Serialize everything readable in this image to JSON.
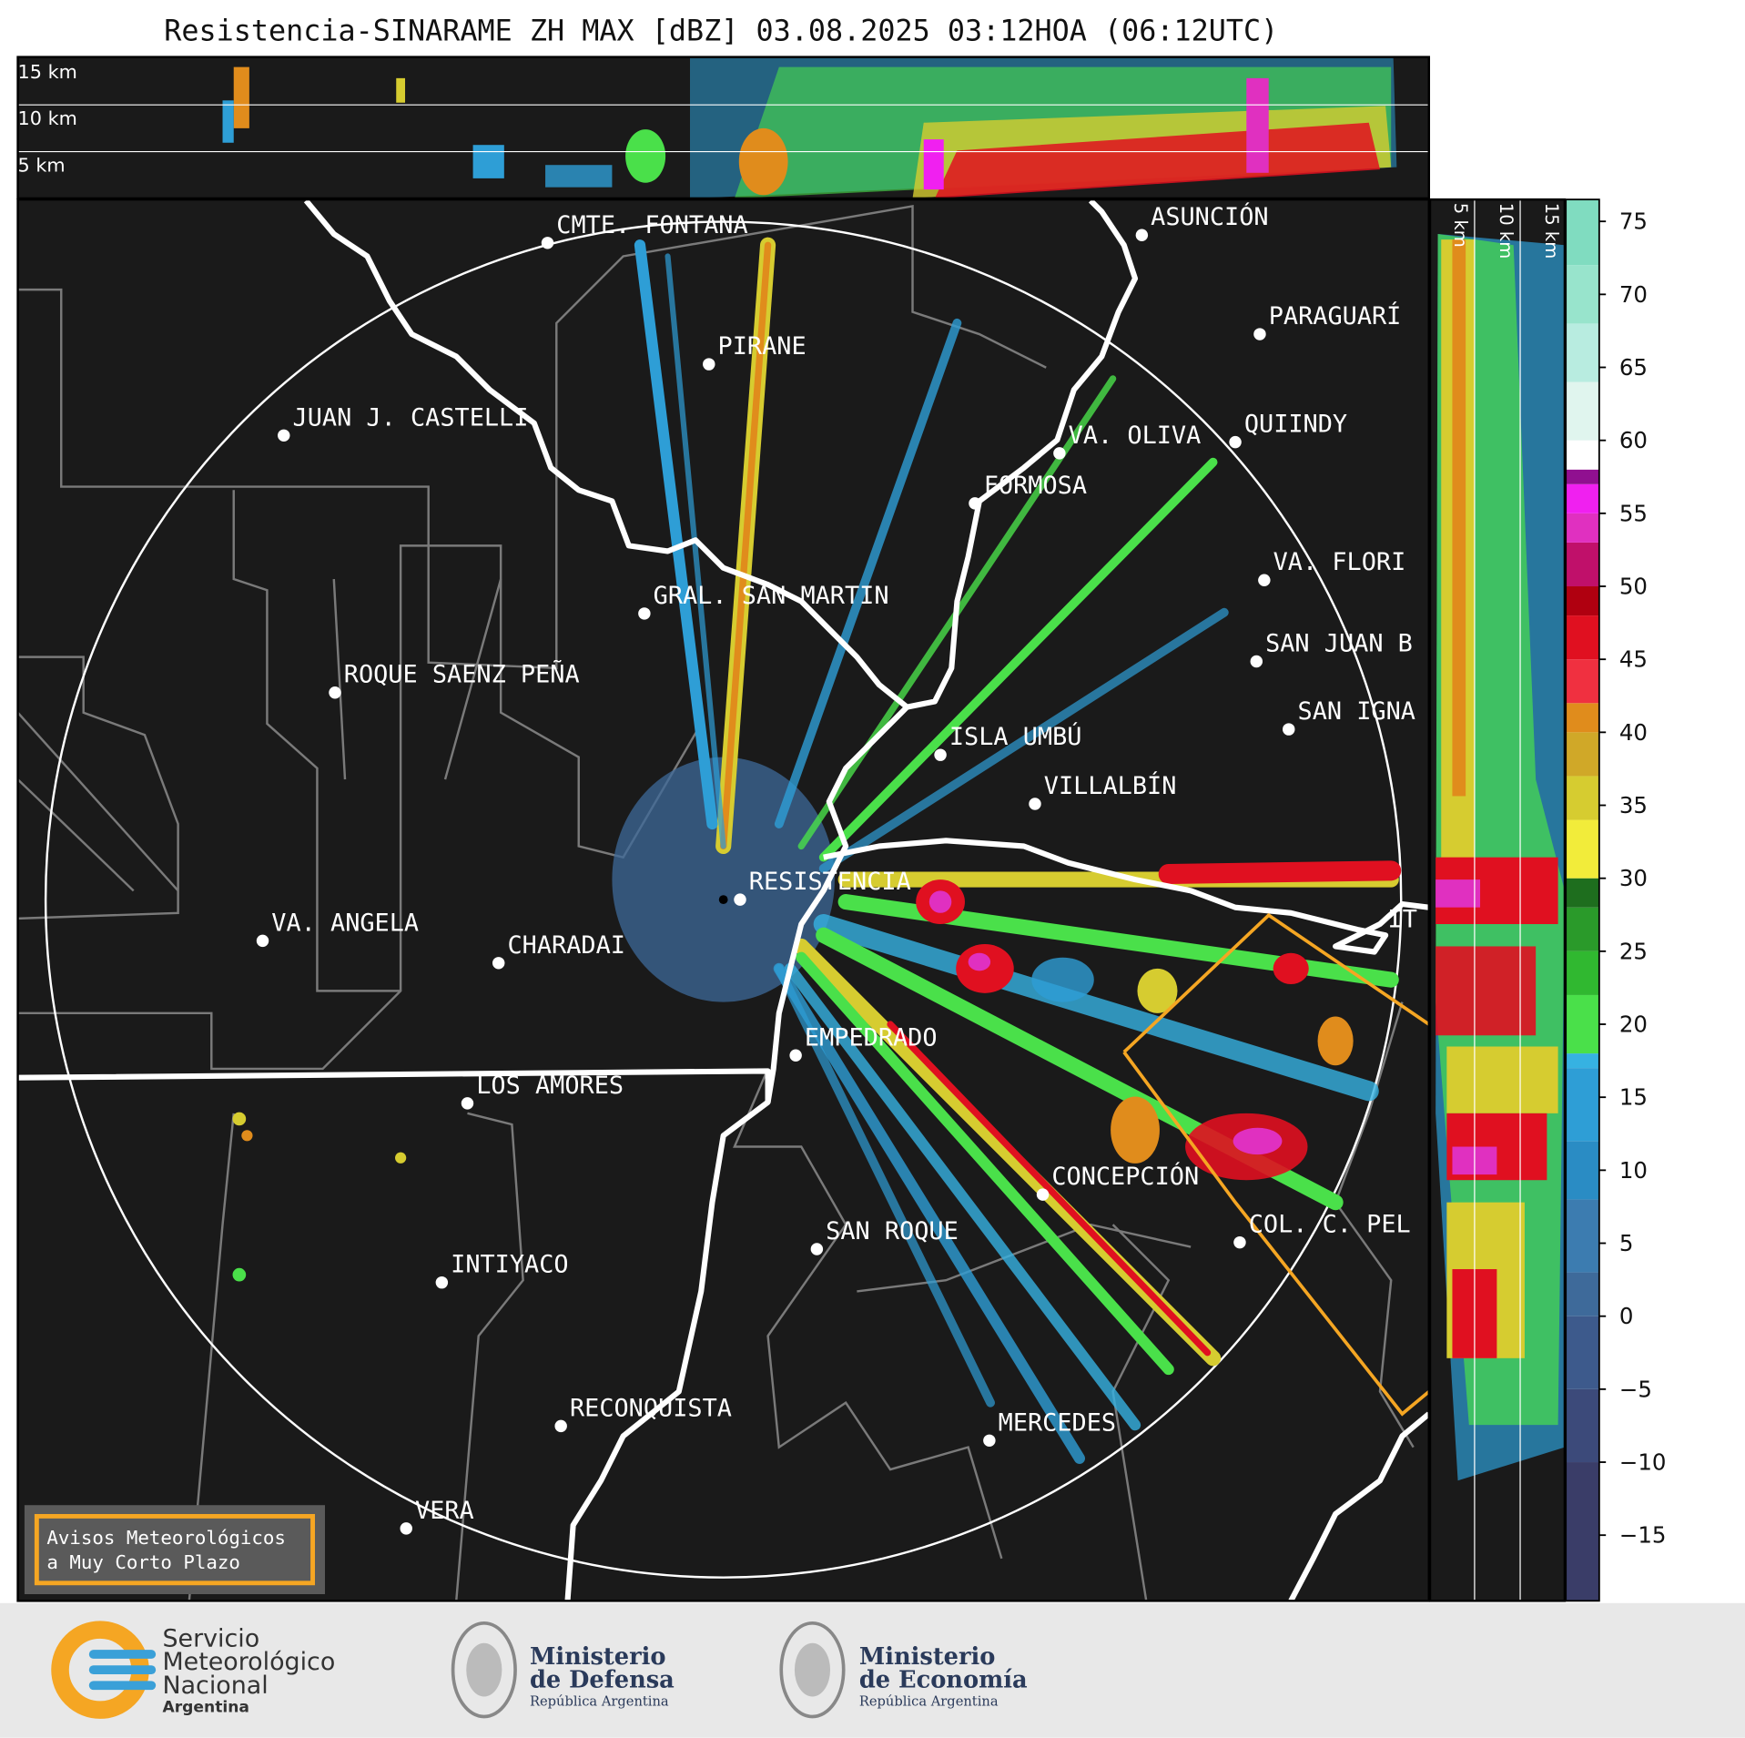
{
  "header": {
    "title": "Resistencia-SINARAME ZH MAX [dBZ] 03.08.2025 03:12HOA (06:12UTC)"
  },
  "top_section": {
    "height_labels": [
      "15 km",
      "10 km",
      "5 km"
    ]
  },
  "side_section": {
    "height_labels": [
      "5 km",
      "10 km",
      "15 km"
    ]
  },
  "map": {
    "places": [
      "CMTE. FONTANA",
      "PIRANE",
      "JUAN J. CASTELLI",
      "VA. OLIVA",
      "QUIINDY",
      "ASUNCIÓN",
      "PARAGUARÍ",
      "FORMOSA",
      "VA. FLORI",
      "SAN JUAN B",
      "SAN IGNA",
      "GRAL. SAN MARTIN",
      "ROQUE SAENZ PEÑA",
      "ISLA UMBÚ",
      "VILLALBÍN",
      "RESISTENCIA",
      "VA. ANGELA",
      "CHARADAI",
      "IT",
      "EMPEDRADO",
      "LOS AMORES",
      "CONCEPCIÓN",
      "COL. C. PEL",
      "SAN ROQUE",
      "INTIYACO",
      "RECONQUISTA",
      "MERCEDES",
      "VERA"
    ]
  },
  "colorbar": {
    "lim": [
      -19.5,
      76.5
    ],
    "ticks": [
      75,
      70,
      65,
      60,
      55,
      50,
      45,
      40,
      35,
      30,
      25,
      20,
      15,
      10,
      5,
      0,
      {
        "value": -5,
        "label": "−5"
      },
      {
        "value": -10,
        "label": "−10"
      },
      {
        "value": -15,
        "label": "−15"
      }
    ],
    "stops": [
      {
        "value": -19.5,
        "color": "#3a3d68"
      },
      {
        "value": -10,
        "color": "#3c4a7a"
      },
      {
        "value": -5,
        "color": "#3d5a8c"
      },
      {
        "value": 0,
        "color": "#3e6a9a"
      },
      {
        "value": 3,
        "color": "#3c7cb0"
      },
      {
        "value": 8,
        "color": "#2a8cc4"
      },
      {
        "value": 12,
        "color": "#2e9ed6"
      },
      {
        "value": 17,
        "color": "#36b2e2"
      },
      {
        "value": 18,
        "color": "#4ae04a"
      },
      {
        "value": 22,
        "color": "#30b830"
      },
      {
        "value": 25,
        "color": "#2a9a2a"
      },
      {
        "value": 28,
        "color": "#1e6e1e"
      },
      {
        "value": 30,
        "color": "#f2ec3a"
      },
      {
        "value": 34,
        "color": "#d6cc30"
      },
      {
        "value": 37,
        "color": "#d0a828"
      },
      {
        "value": 40,
        "color": "#e08c1c"
      },
      {
        "value": 42,
        "color": "#f03040"
      },
      {
        "value": 45,
        "color": "#e01020"
      },
      {
        "value": 48,
        "color": "#b00010"
      },
      {
        "value": 50,
        "color": "#c0106a"
      },
      {
        "value": 53,
        "color": "#e030c0"
      },
      {
        "value": 55,
        "color": "#f020f0"
      },
      {
        "value": 57,
        "color": "#901090"
      },
      {
        "value": 58,
        "color": "#ffffff"
      },
      {
        "value": 60,
        "color": "#e0f5ee"
      },
      {
        "value": 64,
        "color": "#b8ece0"
      },
      {
        "value": 68,
        "color": "#98e4cc"
      },
      {
        "value": 72,
        "color": "#80dcc0"
      }
    ]
  },
  "notice": {
    "lines": [
      "Avisos Meteorológicos",
      "a Muy Corto Plazo"
    ]
  },
  "footer": {
    "smn": [
      "Servicio",
      "Meteorológico",
      "Nacional",
      "Argentina"
    ],
    "defensa": [
      "Ministerio",
      "de Defensa",
      "República Argentina"
    ],
    "economia": [
      "Ministerio",
      "de Economía",
      "República Argentina"
    ]
  }
}
